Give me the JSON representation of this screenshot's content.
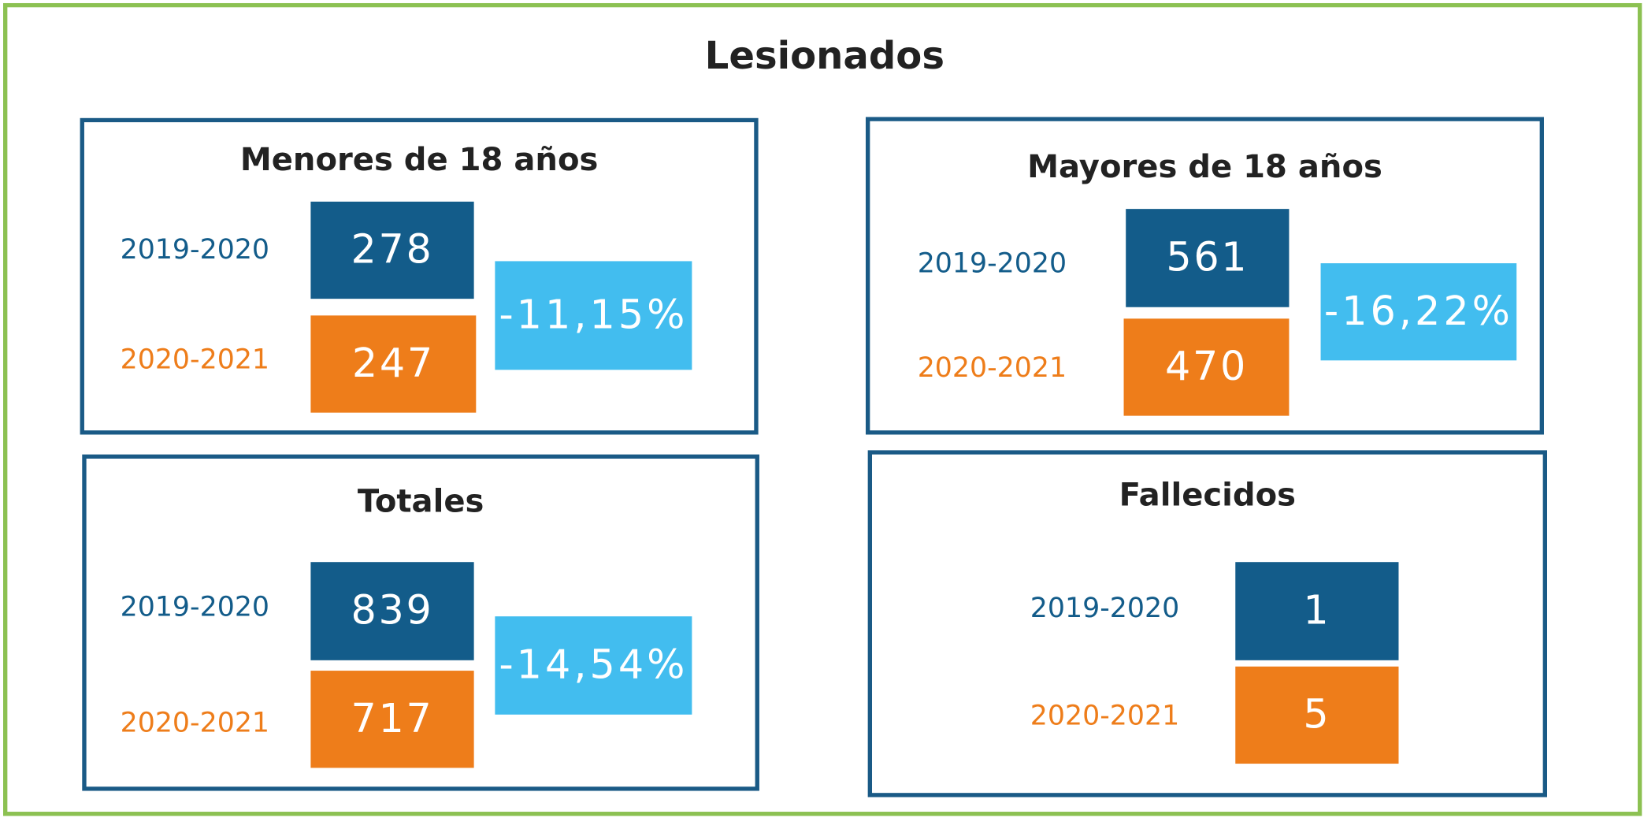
{
  "title": "Lesionados",
  "panels": [
    {
      "title": "Menores de 18 años",
      "rows": [
        {
          "period": "2019-2020",
          "value": "278"
        },
        {
          "period": "2020-2021",
          "value": "247"
        }
      ],
      "change": "-11,15%"
    },
    {
      "title": "Mayores de 18 años",
      "rows": [
        {
          "period": "2019-2020",
          "value": "561"
        },
        {
          "period": "2020-2021",
          "value": "470"
        }
      ],
      "change": "-16,22%"
    },
    {
      "title": "Totales",
      "rows": [
        {
          "period": "2019-2020",
          "value": "839"
        },
        {
          "period": "2020-2021",
          "value": "717"
        }
      ],
      "change": "-14,54%"
    },
    {
      "title": "Fallecidos",
      "rows": [
        {
          "period": "2019-2020",
          "value": "1"
        },
        {
          "period": "2020-2021",
          "value": "5"
        }
      ]
    }
  ]
}
